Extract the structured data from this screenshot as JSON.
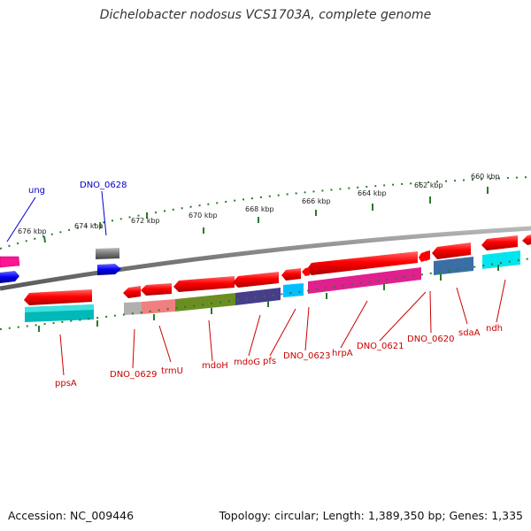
{
  "title": "Dichelobacter nodosus VCS1703A, complete genome",
  "footer": {
    "accession": "Accession: NC_009446",
    "summary": "Topology: circular; Length: 1,389,350 bp; Genes: 1,335"
  },
  "ruler": {
    "unit": "kbp",
    "labels": [
      "676 kbp",
      "674 kbp",
      "672 kbp",
      "670 kbp",
      "668 kbp",
      "666 kbp",
      "664 kbp",
      "662 kbp",
      "660 kbp"
    ]
  },
  "colors": {
    "forward_strand": "#ff0000",
    "reverse_strand": "#ff0000",
    "label_red": "#cc0000",
    "label_blue": "#0000cc",
    "backbone": "#808080",
    "tick": "#2a7a2a"
  },
  "genes": {
    "ung": "ung",
    "DNO_0628": "DNO_0628",
    "ppsA": "ppsA",
    "DNO_0629": "DNO_0629",
    "trmU": "trmU",
    "mdoH": "mdoH",
    "mdoG": "mdoG",
    "pfs": "pfs",
    "DNO_0623": "DNO_0623",
    "hrpA": "hrpA",
    "DNO_0621": "DNO_0621",
    "DNO_0620": "DNO_0620",
    "sdaA": "sdaA",
    "ndh": "ndh"
  }
}
